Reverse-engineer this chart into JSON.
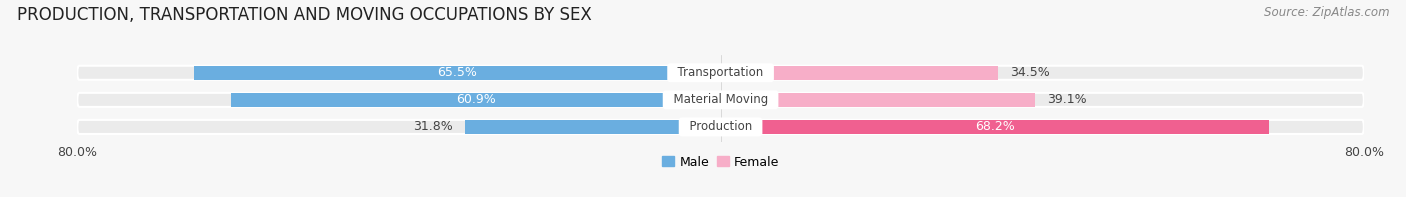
{
  "title": "PRODUCTION, TRANSPORTATION AND MOVING OCCUPATIONS BY SEX",
  "source": "Source: ZipAtlas.com",
  "categories": [
    "Transportation",
    "Material Moving",
    "Production"
  ],
  "male_values": [
    65.5,
    60.9,
    31.8
  ],
  "female_values": [
    34.5,
    39.1,
    68.2
  ],
  "male_color": "#6aaee0",
  "female_color_light": "#f7aec8",
  "female_color_dark": "#f06090",
  "bar_bg_color": "#ebebeb",
  "xlim_left": -80,
  "xlim_right": 80,
  "bar_height": 0.52,
  "title_fontsize": 12,
  "source_fontsize": 8.5,
  "value_fontsize": 9,
  "category_fontsize": 8.5,
  "legend_fontsize": 9,
  "background_color": "#f7f7f7",
  "text_dark": "#444444",
  "text_light": "#ffffff"
}
